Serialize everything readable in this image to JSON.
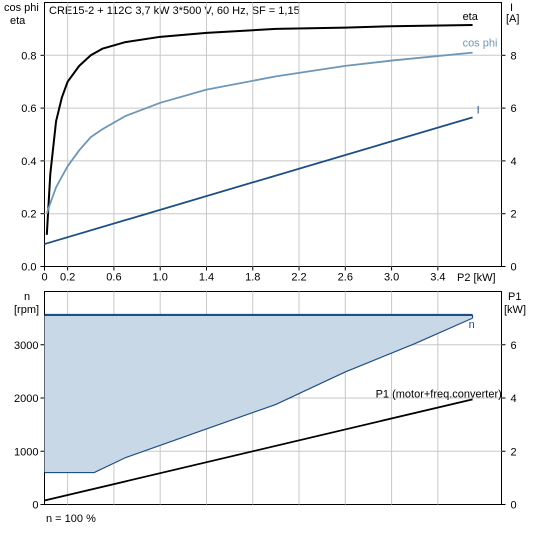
{
  "chart_data": [
    {
      "type": "line",
      "title": "CRE15-2 + 112C   3,7 kW   3*500 V, 60 Hz, SF = 1,15",
      "ylabel_left": [
        "cos phi",
        "eta"
      ],
      "ylabel_right": [
        "I",
        "[A]"
      ],
      "xlabel": "P2 [kW]",
      "xlim": [
        0,
        3.95
      ],
      "ylim_left": [
        0,
        1.0
      ],
      "ylim_right": [
        0,
        10
      ],
      "xticks": [
        "0",
        "0.2",
        "0.6",
        "1.0",
        "1.4",
        "1.8",
        "2.2",
        "2.6",
        "3.0",
        "3.4"
      ],
      "xtick_values": [
        0,
        0.2,
        0.6,
        1.0,
        1.4,
        1.8,
        2.2,
        2.6,
        3.0,
        3.4
      ],
      "yticks_left": [
        "0.0",
        "0.2",
        "0.4",
        "0.6",
        "0.8"
      ],
      "yticks_right": [
        "0",
        "2",
        "4",
        "6",
        "8"
      ],
      "grid": true,
      "series": [
        {
          "name": "eta",
          "axis": "left",
          "color": "#000000",
          "x": [
            0.02,
            0.05,
            0.1,
            0.15,
            0.2,
            0.3,
            0.4,
            0.5,
            0.7,
            1.0,
            1.4,
            2.0,
            2.6,
            3.0,
            3.7
          ],
          "y": [
            0.12,
            0.35,
            0.55,
            0.64,
            0.7,
            0.76,
            0.8,
            0.825,
            0.85,
            0.87,
            0.885,
            0.9,
            0.905,
            0.91,
            0.915
          ]
        },
        {
          "name": "cos phi",
          "axis": "left",
          "color": "#6c97b8",
          "x": [
            0.02,
            0.05,
            0.1,
            0.15,
            0.2,
            0.3,
            0.4,
            0.5,
            0.7,
            1.0,
            1.4,
            2.0,
            2.6,
            3.0,
            3.7
          ],
          "y": [
            0.2,
            0.24,
            0.3,
            0.34,
            0.38,
            0.44,
            0.49,
            0.52,
            0.57,
            0.62,
            0.67,
            0.72,
            0.76,
            0.78,
            0.81
          ]
        },
        {
          "name": "I",
          "axis": "right",
          "color": "#1f4e84",
          "x": [
            0,
            3.7
          ],
          "y": [
            0.85,
            5.65
          ]
        }
      ]
    },
    {
      "type": "line",
      "ylabel_left": [
        "n",
        "[rpm]"
      ],
      "ylabel_right": [
        "P1",
        "[kW]"
      ],
      "xlim": [
        0,
        3.95
      ],
      "ylim_left": [
        0,
        4000
      ],
      "ylim_right": [
        0,
        8
      ],
      "yticks_left": [
        "0",
        "1000",
        "2000",
        "3000"
      ],
      "yticks_right": [
        "0",
        "2",
        "4",
        "6"
      ],
      "grid": true,
      "footer": "n = 100 %",
      "series": [
        {
          "name": "n",
          "axis": "left",
          "color": "#1f4e84",
          "fill": "#c9d8e6",
          "x": [
            0,
            0.43,
            0.7,
            1.4,
            2.0,
            2.6,
            3.2,
            3.7
          ],
          "y": [
            600,
            600,
            880,
            1420,
            1880,
            2490,
            3020,
            3500
          ],
          "upper_y": 3560
        },
        {
          "name": "P1 (motor+freq.converter)",
          "axis": "right",
          "color": "#000000",
          "x": [
            0,
            3.7
          ],
          "y": [
            0.15,
            3.95
          ]
        }
      ]
    }
  ]
}
